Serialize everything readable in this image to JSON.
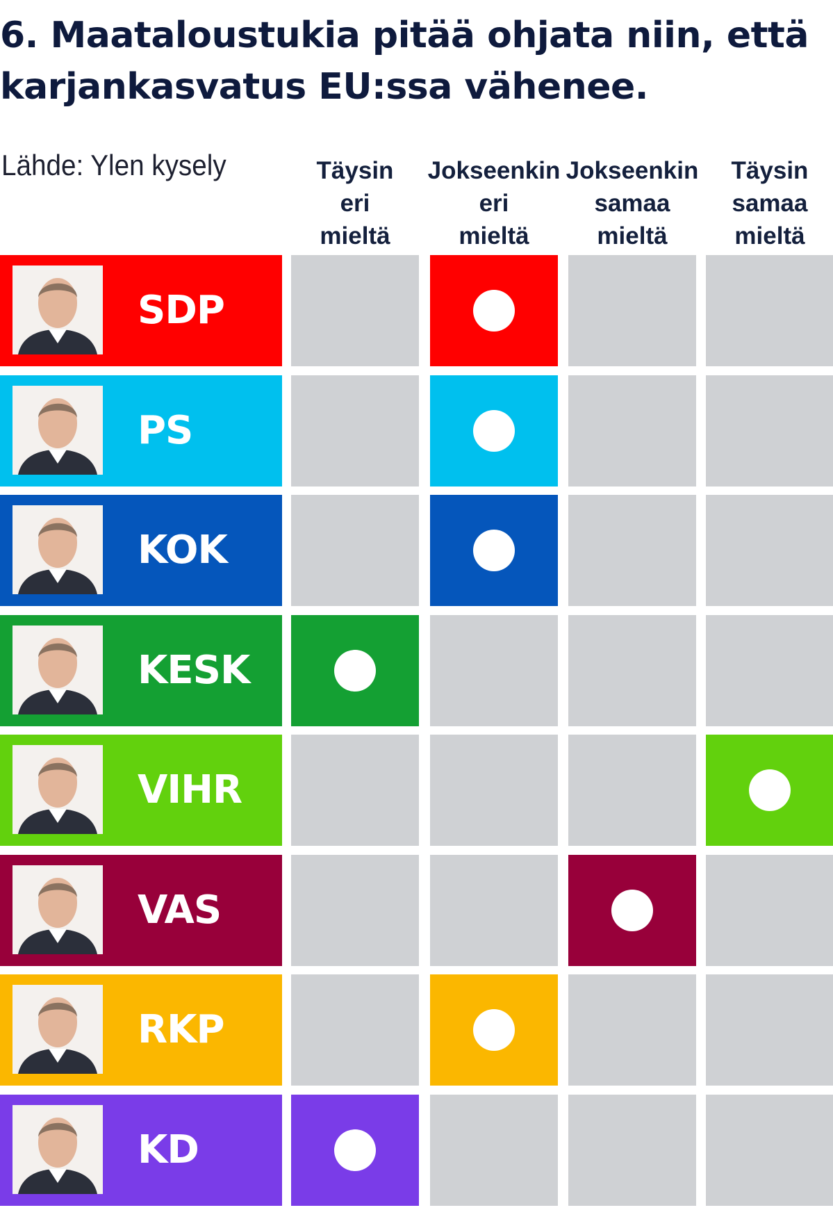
{
  "title_line1": "6. Maataloustukia pitää ohjata niin, että",
  "title_line2": "karjankasvatus EU:ssa vähenee.",
  "source": "Lähde: Ylen kysely",
  "chart_data": {
    "type": "table",
    "columns": [
      {
        "lines": [
          "Täysin",
          "eri",
          "mieltä"
        ]
      },
      {
        "lines": [
          "Jokseenkin",
          "eri",
          "mieltä"
        ]
      },
      {
        "lines": [
          "Jokseenkin",
          "samaa",
          "mieltä"
        ]
      },
      {
        "lines": [
          "Täysin",
          "samaa",
          "mieltä"
        ]
      }
    ],
    "rows": [
      {
        "party": "SDP",
        "color": "#ff0000",
        "answer_index": 1
      },
      {
        "party": "PS",
        "color": "#00c0ee",
        "answer_index": 1
      },
      {
        "party": "KOK",
        "color": "#0556bb",
        "answer_index": 1
      },
      {
        "party": "KESK",
        "color": "#14a033",
        "answer_index": 0
      },
      {
        "party": "VIHR",
        "color": "#62d10d",
        "answer_index": 3
      },
      {
        "party": "VAS",
        "color": "#98003a",
        "answer_index": 2
      },
      {
        "party": "RKP",
        "color": "#fbb700",
        "answer_index": 1
      },
      {
        "party": "KD",
        "color": "#7a3ce8",
        "answer_index": 0
      }
    ],
    "empty_cell_color": "#cfd1d4"
  }
}
